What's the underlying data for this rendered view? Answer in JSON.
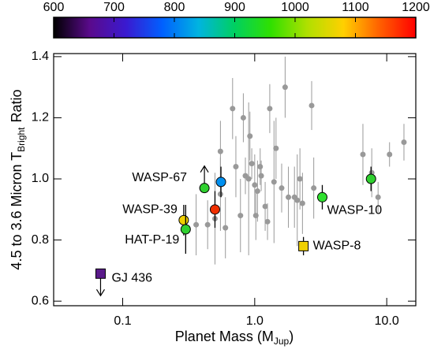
{
  "chart_data": {
    "type": "scatter",
    "xlabel": {
      "main": "Planet Mass (M",
      "sub": "Jup",
      "end": ")"
    },
    "ylabel": {
      "main": "4.5 to 3.6 Micron T",
      "sub": "Bright",
      "end": "Ratio"
    },
    "xlog": true,
    "xlim": [
      0.03,
      16.6
    ],
    "ylim": [
      0.585,
      1.41
    ],
    "xticks": [
      0.1,
      {
        "value": 1,
        "label": "1.0"
      },
      {
        "value": 10,
        "label": "10.0"
      }
    ],
    "yticks": [
      0.6,
      0.8,
      {
        "value": 1,
        "label": "1.0"
      },
      1.2,
      1.4
    ],
    "colorbar": {
      "range": [
        600,
        1200
      ],
      "ticks": [
        600,
        700,
        800,
        900,
        1000,
        1100,
        1200
      ],
      "colors": [
        "#000000",
        "#5a0a8c",
        "#3a1ad0",
        "#0060ff",
        "#00b4e0",
        "#00d060",
        "#30e000",
        "#b0e000",
        "#ffd000",
        "#ff6000",
        "#ff0000"
      ]
    },
    "points": {
      "color": "#999999",
      "x": [
        0.36,
        0.44,
        0.5,
        0.55,
        0.55,
        0.6,
        0.68,
        0.72,
        0.78,
        0.82,
        0.85,
        0.9,
        0.92,
        0.95,
        1.0,
        1.02,
        1.05,
        1.1,
        1.12,
        1.2,
        1.25,
        1.3,
        1.4,
        1.45,
        1.6,
        1.7,
        1.8,
        2.0,
        2.1,
        2.2,
        2.3,
        2.7,
        2.8,
        6.6,
        7.7,
        8.6,
        10.5,
        13.5
      ],
      "y": [
        0.85,
        0.85,
        0.87,
        1.09,
        0.95,
        0.84,
        1.23,
        1.04,
        0.88,
        1.2,
        1.01,
        1.0,
        1.14,
        1.05,
        0.98,
        0.88,
        0.96,
        1.04,
        1.01,
        0.91,
        0.86,
        1.23,
        0.99,
        1.1,
        0.97,
        1.3,
        0.94,
        0.94,
        0.93,
        1.0,
        0.92,
        1.24,
        0.97,
        1.08,
        1.02,
        0.94,
        1.08,
        1.12
      ],
      "err": [
        0.1,
        0.08,
        0.15,
        0.1,
        0.12,
        0.1,
        0.1,
        0.1,
        0.12,
        0.08,
        0.06,
        0.25,
        0.08,
        0.05,
        0.1,
        0.08,
        0.1,
        0.06,
        0.05,
        0.08,
        0.06,
        0.08,
        0.2,
        0.1,
        0.08,
        0.1,
        0.1,
        0.1,
        0.15,
        0.1,
        0.1,
        0.08,
        0.1,
        0.1,
        0.08,
        0.05,
        0.04,
        0.06
      ]
    },
    "planets": [
      {
        "name": "GJ 436",
        "x": 0.068,
        "y": 0.69,
        "err": 0,
        "color": "#5a1a8a",
        "marker": "square",
        "limit": "upper"
      },
      {
        "name": "WASP-67",
        "x": 0.416,
        "y": 0.97,
        "err": 0,
        "color": "#30d030",
        "marker": "circle",
        "limit": "lower"
      },
      {
        "name": "WASP-39",
        "x": 0.29,
        "y": 0.865,
        "err": 0.05,
        "color": "#f0d000",
        "marker": "circle"
      },
      {
        "name": "HAT-P-19",
        "x": 0.3,
        "y": 0.835,
        "err": 0.08,
        "color": "#30d030",
        "marker": "circle"
      },
      {
        "x": 0.5,
        "y": 0.9,
        "err": 0.06,
        "color": "#f03000",
        "marker": "circle"
      },
      {
        "x": 0.555,
        "y": 0.99,
        "err": 0.05,
        "color": "#0090f0",
        "marker": "circle"
      },
      {
        "name": "WASP-10",
        "x": 3.25,
        "y": 0.94,
        "err": 0.04,
        "color": "#30e030",
        "marker": "circle"
      },
      {
        "x": 7.6,
        "y": 1.0,
        "err": 0.04,
        "color": "#30d030",
        "marker": "circle"
      },
      {
        "name": "WASP-8",
        "x": 2.34,
        "y": 0.78,
        "err": 0.03,
        "color": "#f0d000",
        "marker": "square"
      }
    ]
  }
}
